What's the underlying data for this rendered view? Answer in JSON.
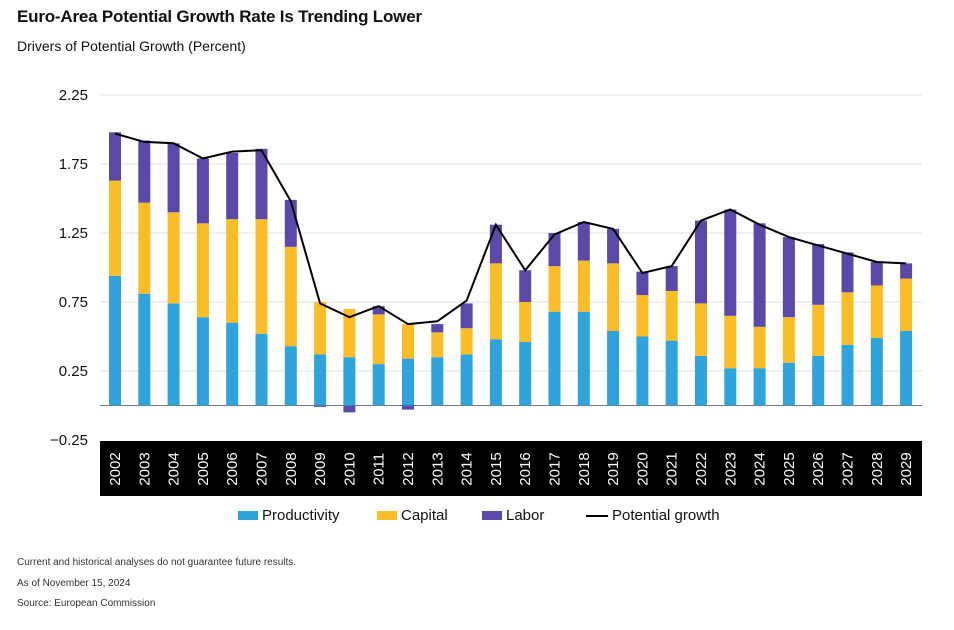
{
  "header": {
    "title": "Euro-Area Potential Growth Rate Is Trending Lower",
    "subtitle": "Drivers of Potential Growth (Percent)"
  },
  "footnotes": {
    "disclaimer": "Current and historical analyses do not guarantee future results.",
    "asof": "As of November 15, 2024",
    "source": "Source: European Commission"
  },
  "colors": {
    "productivity": "#2ea3dc",
    "capital": "#fbbd26",
    "labor": "#5b48a8",
    "potential": "#000000",
    "axis_band": "#000000"
  },
  "chart_data": {
    "type": "bar",
    "stacked": true,
    "categories": [
      "2002",
      "2003",
      "2004",
      "2005",
      "2006",
      "2007",
      "2008",
      "2009",
      "2010",
      "2011",
      "2012",
      "2013",
      "2014",
      "2015",
      "2016",
      "2017",
      "2018",
      "2019",
      "2020",
      "2021",
      "2022",
      "2023",
      "2024",
      "2025",
      "2026",
      "2027",
      "2028",
      "2029"
    ],
    "series": [
      {
        "name": "Productivity",
        "kind": "bar",
        "values": [
          0.94,
          0.81,
          0.74,
          0.64,
          0.6,
          0.52,
          0.43,
          0.37,
          0.35,
          0.3,
          0.34,
          0.35,
          0.37,
          0.48,
          0.46,
          0.68,
          0.68,
          0.54,
          0.5,
          0.47,
          0.36,
          0.27,
          0.27,
          0.31,
          0.36,
          0.44,
          0.49,
          0.54
        ]
      },
      {
        "name": "Capital",
        "kind": "bar",
        "values": [
          0.69,
          0.66,
          0.66,
          0.68,
          0.75,
          0.83,
          0.72,
          0.38,
          0.35,
          0.36,
          0.25,
          0.18,
          0.19,
          0.55,
          0.29,
          0.33,
          0.37,
          0.49,
          0.3,
          0.36,
          0.38,
          0.38,
          0.3,
          0.33,
          0.37,
          0.38,
          0.38,
          0.38
        ]
      },
      {
        "name": "Labor",
        "kind": "bar",
        "values": [
          0.35,
          0.45,
          0.5,
          0.47,
          0.48,
          0.51,
          0.34,
          -0.01,
          -0.05,
          0.06,
          -0.03,
          0.06,
          0.18,
          0.28,
          0.23,
          0.24,
          0.28,
          0.25,
          0.17,
          0.18,
          0.6,
          0.77,
          0.75,
          0.58,
          0.44,
          0.29,
          0.17,
          0.11
        ]
      },
      {
        "name": "Potential growth",
        "kind": "line",
        "values": [
          1.97,
          1.91,
          1.9,
          1.79,
          1.84,
          1.85,
          1.48,
          0.74,
          0.64,
          0.72,
          0.59,
          0.61,
          0.76,
          1.31,
          0.98,
          1.24,
          1.33,
          1.28,
          0.96,
          1.01,
          1.34,
          1.42,
          1.31,
          1.22,
          1.16,
          1.1,
          1.04,
          1.03
        ]
      }
    ],
    "yticks": [
      "−0.25",
      "0.25",
      "0.75",
      "1.25",
      "1.75",
      "2.25"
    ],
    "ylim": [
      -0.25,
      2.25
    ],
    "grid": true,
    "legend_position": "bottom"
  }
}
